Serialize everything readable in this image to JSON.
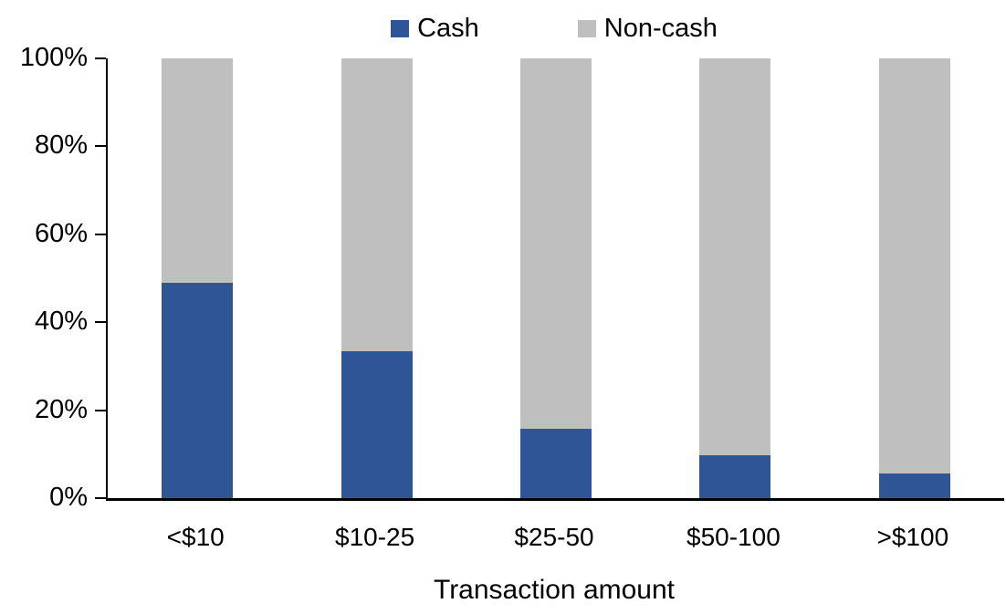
{
  "chart_data": {
    "type": "bar",
    "subtype": "stacked-100",
    "title": "",
    "xlabel": "Transaction amount",
    "ylabel": "",
    "categories": [
      "<$10",
      "$10-25",
      "$25-50",
      "$50-100",
      ">$100"
    ],
    "series": [
      {
        "name": "Cash",
        "color": "#2F5597",
        "values": [
          49,
          33.5,
          15.8,
          9.7,
          5.7
        ]
      },
      {
        "name": "Non-cash",
        "color": "#BFBFBF",
        "values": [
          51,
          66.5,
          84.2,
          90.3,
          94.3
        ]
      }
    ],
    "ylim": [
      0,
      100
    ],
    "y_ticks": [
      "0%",
      "20%",
      "40%",
      "60%",
      "80%",
      "100%"
    ],
    "y_tick_values": [
      0,
      20,
      40,
      60,
      80,
      100
    ],
    "grid": false,
    "legend_position": "top-center"
  },
  "colors": {
    "axis": "#000000",
    "text": "#000000",
    "background": "#FFFFFF"
  }
}
